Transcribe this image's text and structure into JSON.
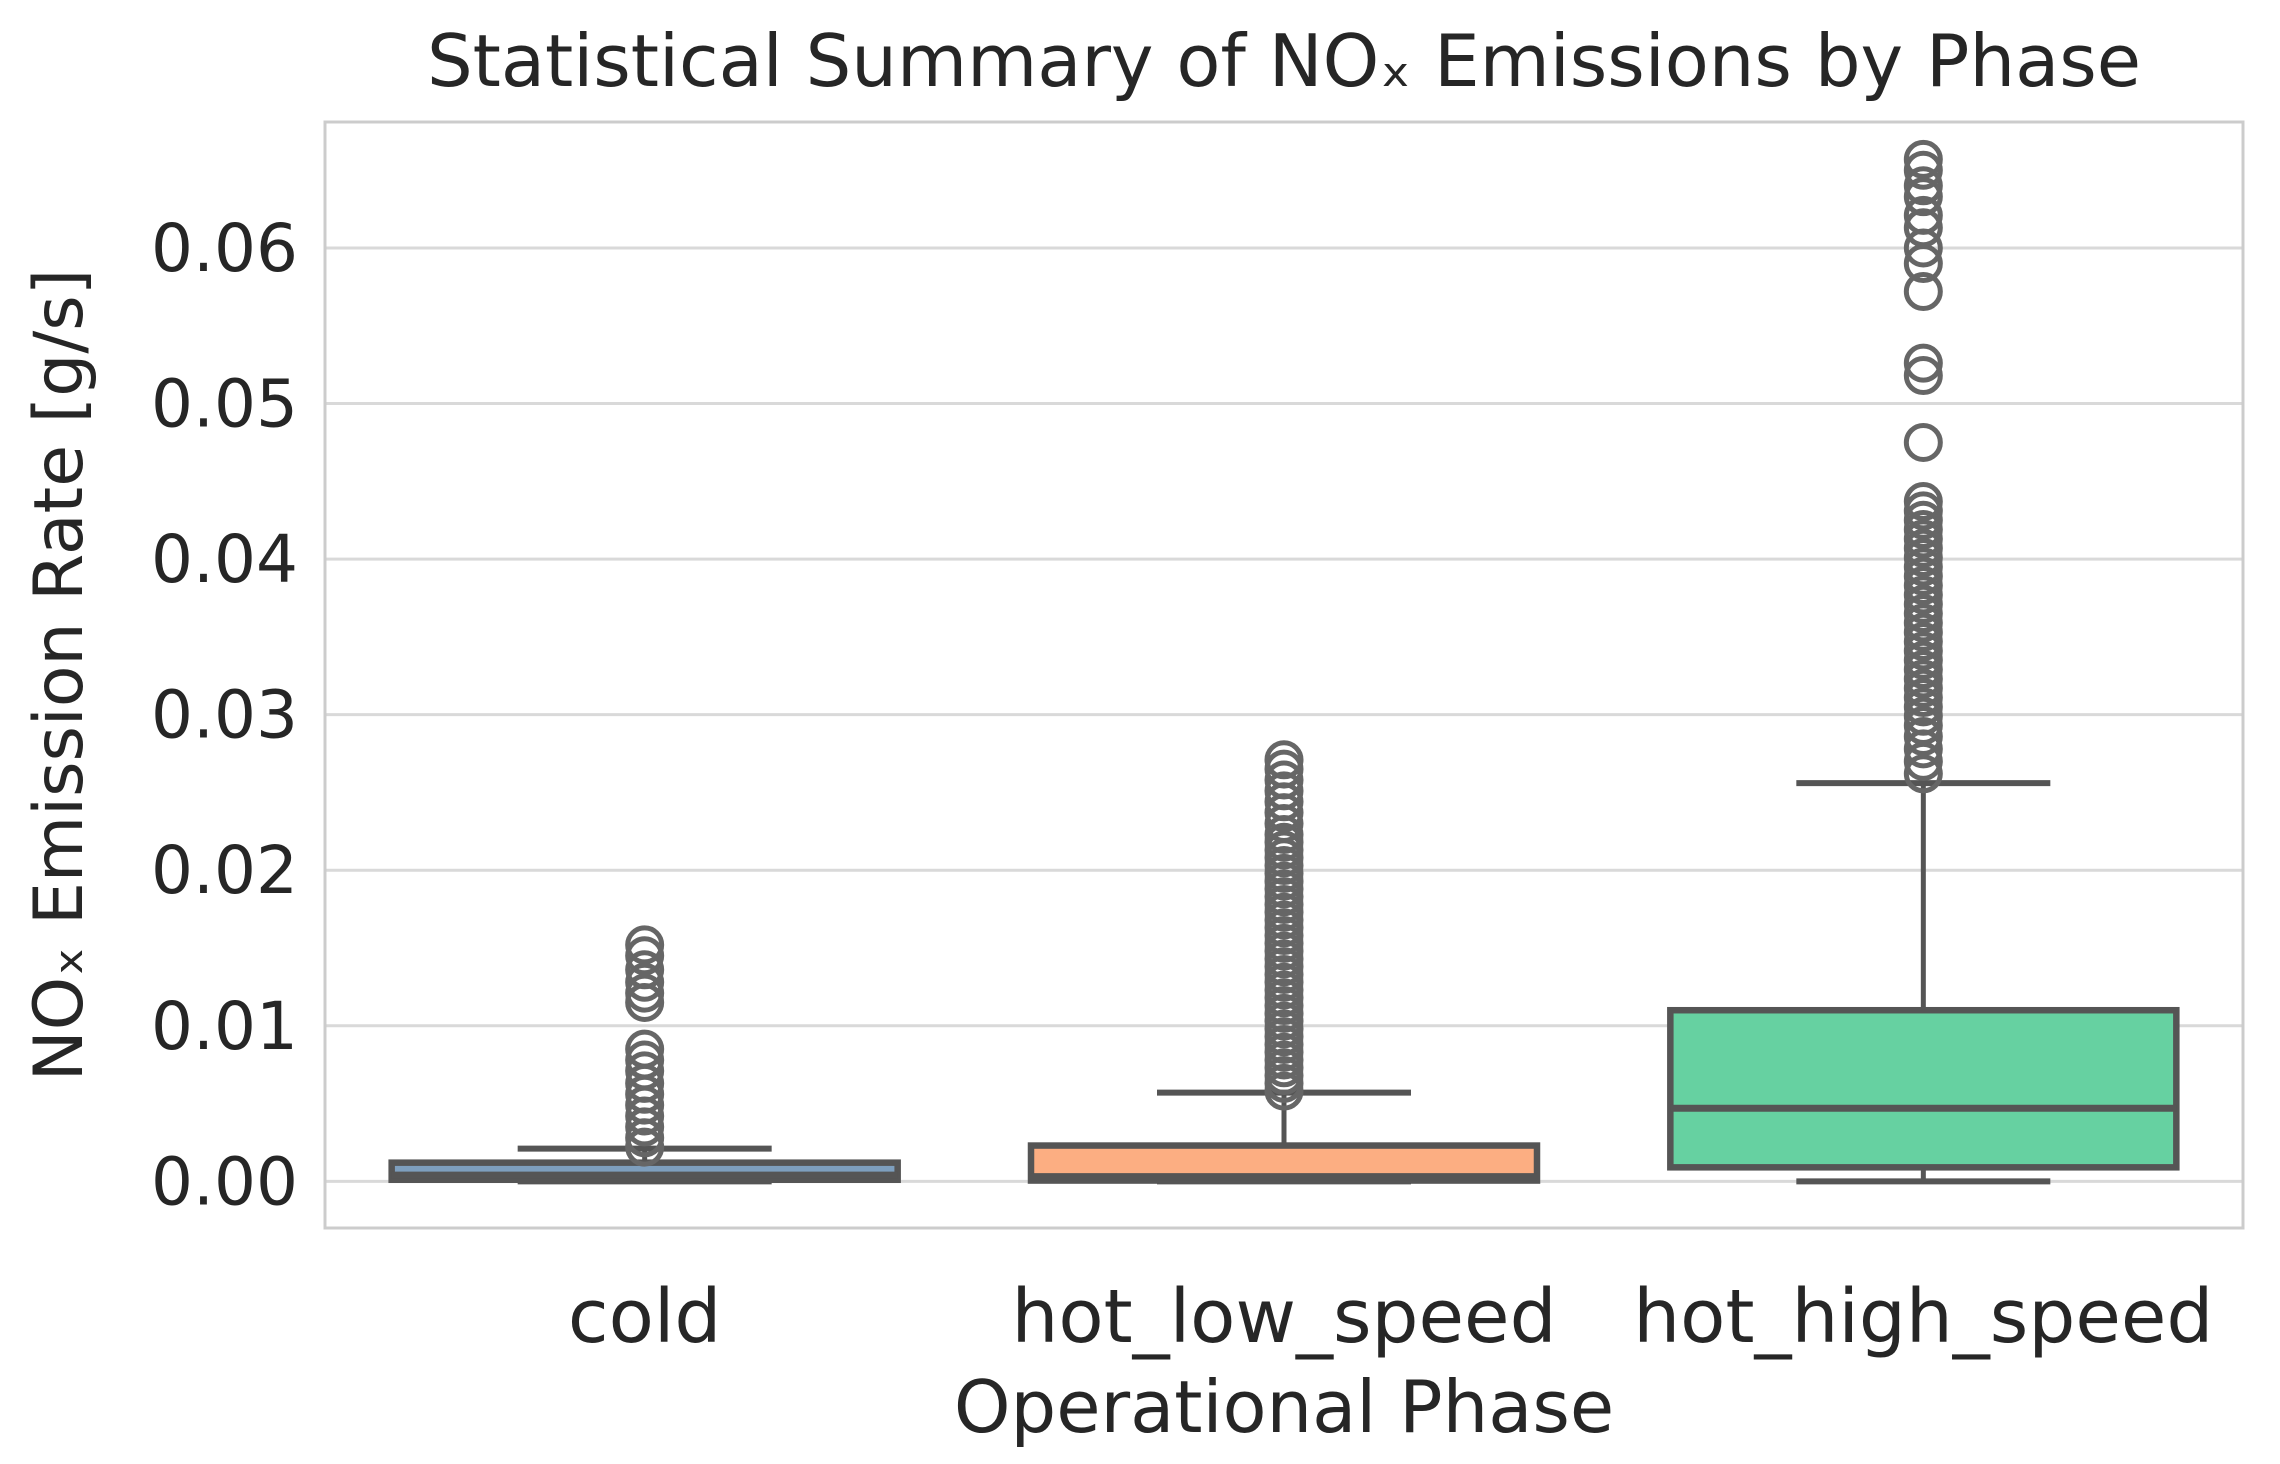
{
  "chart_data": {
    "type": "box",
    "title": "Statistical Summary of NOₓ Emissions by Phase",
    "x_axis": {
      "label": "Operational Phase",
      "categories": [
        "cold",
        "hot_low_speed",
        "hot_high_speed"
      ]
    },
    "y_axis": {
      "label": "NOₓ Emission Rate [g/s]",
      "tick_labels": [
        "0.00",
        "0.01",
        "0.02",
        "0.03",
        "0.04",
        "0.05",
        "0.06"
      ],
      "tick_values": [
        0.0,
        0.01,
        0.02,
        0.03,
        0.04,
        0.05,
        0.06
      ],
      "range": [
        -0.003,
        0.0681
      ],
      "unit": "g/s"
    },
    "grid": "horizontal",
    "legend": "none",
    "series": [
      {
        "name": "cold",
        "fill": "#7e9fbe",
        "stats": {
          "whisker_low": 0.0,
          "q1": 0.0001,
          "median": 0.0004,
          "q3": 0.0012,
          "whisker_high": 0.0021
        },
        "outliers": [
          0.0022,
          0.0028,
          0.0035,
          0.0042,
          0.0049,
          0.0056,
          0.0063,
          0.0071,
          0.0078,
          0.0085,
          0.0115,
          0.0121,
          0.0128,
          0.0136,
          0.0145,
          0.0152
        ]
      },
      {
        "name": "hot_low_speed",
        "fill": "#fcae82",
        "stats": {
          "whisker_low": 0.0,
          "q1": 5e-05,
          "median": 0.0003,
          "q3": 0.0023,
          "whisker_high": 0.0057
        },
        "outliers": [
          0.0058,
          0.0063,
          0.0068,
          0.0073,
          0.0078,
          0.0083,
          0.0088,
          0.0093,
          0.0098,
          0.0103,
          0.0108,
          0.0113,
          0.0118,
          0.0123,
          0.0128,
          0.0133,
          0.0138,
          0.0143,
          0.0148,
          0.0153,
          0.0158,
          0.0163,
          0.0168,
          0.0173,
          0.0178,
          0.0183,
          0.0188,
          0.0193,
          0.0198,
          0.0203,
          0.0208,
          0.0213,
          0.0218,
          0.0223,
          0.023,
          0.0237,
          0.0244,
          0.0251,
          0.0258,
          0.0265,
          0.0271
        ]
      },
      {
        "name": "hot_high_speed",
        "fill": "#66d1a1",
        "stats": {
          "whisker_low": 0.0,
          "q1": 0.0009,
          "median": 0.0047,
          "q3": 0.011,
          "whisker_high": 0.0256
        },
        "outliers": [
          0.0262,
          0.027,
          0.0278,
          0.0286,
          0.0293,
          0.0299,
          0.0305,
          0.0311,
          0.0317,
          0.0323,
          0.0329,
          0.0335,
          0.0341,
          0.0347,
          0.0353,
          0.0359,
          0.0365,
          0.0371,
          0.0377,
          0.0383,
          0.0389,
          0.0395,
          0.0401,
          0.0407,
          0.0413,
          0.0419,
          0.0425,
          0.0431,
          0.0437,
          0.0475,
          0.0518,
          0.0526,
          0.0572,
          0.059,
          0.06,
          0.0613,
          0.0621,
          0.0633,
          0.064,
          0.065,
          0.0657
        ]
      }
    ],
    "style": {
      "box_line_color": "#555555",
      "outlier_color": "#666666",
      "grid_color": "#d9d9d9",
      "spine_color": "#cccccc",
      "text_color": "#262626",
      "background": "#ffffff"
    }
  }
}
